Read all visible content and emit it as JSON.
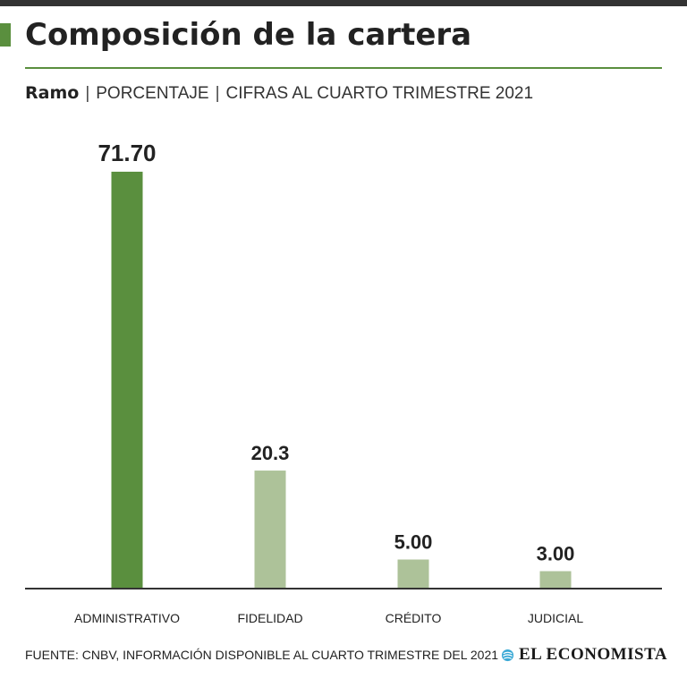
{
  "header": {
    "title": "Composición de la cartera",
    "subtitle_bold": "Ramo",
    "subtitle_parts": [
      "PORCENTAJE",
      "CIFRAS AL CUARTO TRIMESTRE 2021"
    ],
    "separator": "|"
  },
  "colors": {
    "accent": "#5a8f3e",
    "primary_bar": "#5a8f3e",
    "secondary_bar": "#adc299",
    "axis": "#333333",
    "text": "#222222"
  },
  "chart_data": {
    "type": "bar",
    "title": "Composición de la cartera",
    "xlabel": "",
    "ylabel": "",
    "ylim": [
      0,
      80
    ],
    "grid": false,
    "categories": [
      "ADMINISTRATIVO",
      "FIDELIDAD",
      "CRÉDITO",
      "JUDICIAL"
    ],
    "values": [
      71.7,
      20.3,
      5.0,
      3.0
    ],
    "value_labels": [
      "71.70",
      "20.3",
      "5.00",
      "3.00"
    ],
    "highlight_index": 0
  },
  "footer": {
    "source": "FUENTE: CNBV, INFORMACIÓN DISPONIBLE AL CUARTO TRIMESTRE DEL 2021",
    "logo_text": "EL ECONOMISTA",
    "logo_icon": "globe-icon"
  }
}
